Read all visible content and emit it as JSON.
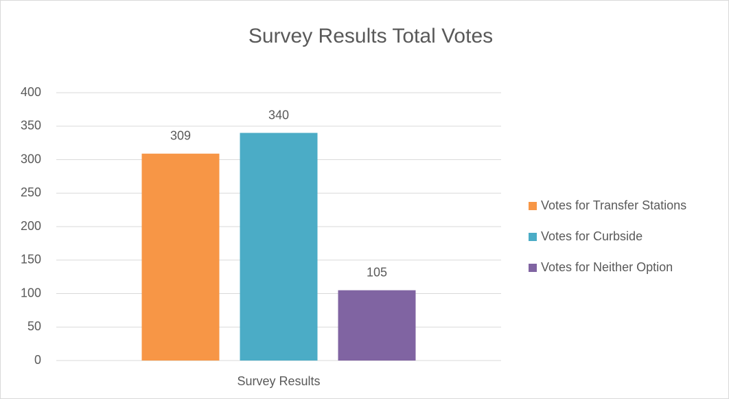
{
  "chart_data": {
    "type": "bar",
    "title": "Survey Results Total Votes",
    "categories": [
      "Survey Results"
    ],
    "series": [
      {
        "name": "Votes for Transfer Stations",
        "color": "#F79646",
        "values": [
          309
        ]
      },
      {
        "name": "Votes for Curbside",
        "color": "#4BACC6",
        "values": [
          340
        ]
      },
      {
        "name": "Votes for Neither Option",
        "color": "#8064A2",
        "values": [
          105
        ]
      }
    ],
    "ylim": [
      0,
      400
    ],
    "yticks": [
      0,
      50,
      100,
      150,
      200,
      250,
      300,
      350,
      400
    ],
    "grid": true,
    "legend": "right",
    "data_labels": true
  }
}
